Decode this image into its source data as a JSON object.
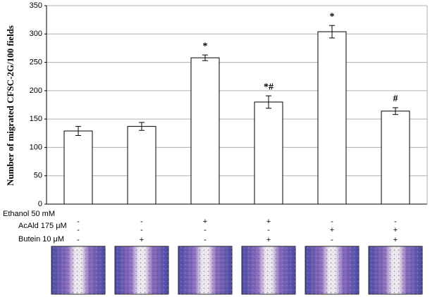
{
  "chart_data": {
    "type": "bar",
    "y_label": "Number of migrated CFSC-2G/100 fields",
    "values": [
      129,
      137,
      258,
      180,
      304,
      164
    ],
    "errors": [
      8,
      7,
      5,
      11,
      11,
      6
    ],
    "annotations": [
      null,
      null,
      "*",
      "*#",
      "*",
      "#"
    ],
    "color": "#ffffff",
    "ylim": [
      0,
      350
    ],
    "yticks": [
      0,
      50,
      100,
      150,
      200,
      250,
      300,
      350
    ],
    "grid": true,
    "treatments": [
      {
        "label": "Ethanol 50 mM",
        "values": [
          "-",
          "-",
          "+",
          "+",
          "-",
          "-"
        ]
      },
      {
        "label": "AcAld 175 μM",
        "values": [
          "-",
          "-",
          "-",
          "-",
          "+",
          "+"
        ]
      },
      {
        "label": "Butein 10 μM",
        "values": [
          "-",
          "+",
          "-",
          "+",
          "-",
          "+"
        ]
      }
    ]
  }
}
